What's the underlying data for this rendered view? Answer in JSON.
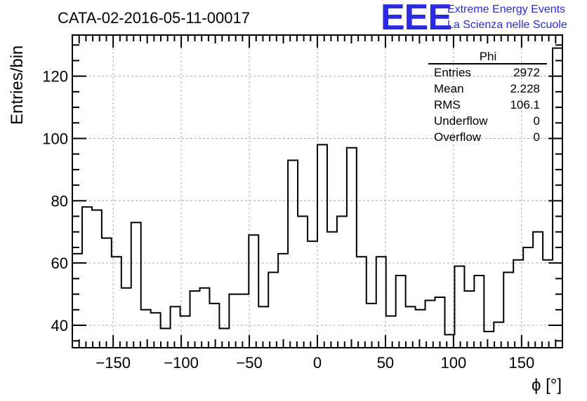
{
  "chart_data": {
    "type": "histogram",
    "title": "CATA-02-2016-05-11-00017",
    "xlabel": "ϕ [°]",
    "ylabel": "Entries/bin",
    "xlim": [
      -180,
      180
    ],
    "ylim": [
      32.8,
      133.2
    ],
    "bin_width": 7.2,
    "x_ticks": [
      -150,
      -100,
      -50,
      0,
      50,
      100,
      150
    ],
    "y_ticks": [
      40,
      60,
      80,
      100,
      120
    ],
    "grid": true,
    "values": [
      63,
      78,
      77,
      68,
      62,
      52,
      73,
      45,
      44,
      39,
      46,
      43,
      51,
      52,
      47,
      39,
      50,
      50,
      69,
      46,
      57,
      63,
      93,
      75,
      67,
      98,
      70,
      75,
      97,
      62,
      47,
      62,
      43,
      56,
      46,
      45,
      48,
      49,
      37,
      59,
      51,
      56,
      38,
      41,
      57,
      61,
      65,
      70,
      61,
      129
    ],
    "stats": {
      "title": "Phi",
      "rows": [
        {
          "label": "Entries",
          "value": "2972"
        },
        {
          "label": "Mean",
          "value": "2.228"
        },
        {
          "label": "RMS",
          "value": "106.1"
        },
        {
          "label": "Underflow",
          "value": "0"
        },
        {
          "label": "Overflow",
          "value": "0"
        }
      ]
    }
  },
  "logo": {
    "text": "EEE",
    "line1": "Extreme Energy Events",
    "line2": "La Scienza nelle Scuole",
    "color": "#2a2ae0"
  }
}
